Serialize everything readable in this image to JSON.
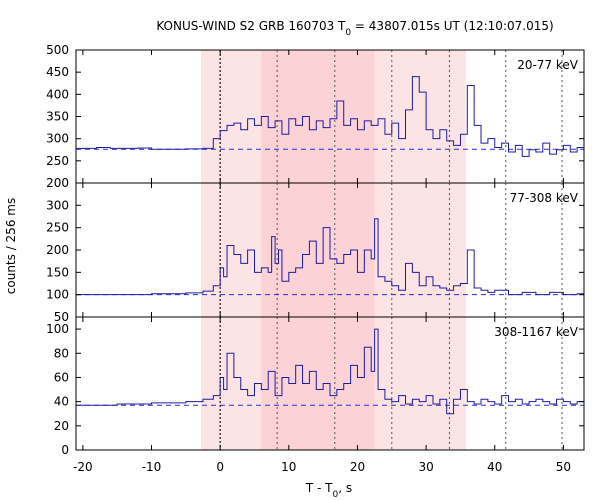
{
  "chart_data": {
    "type": "line",
    "title": "KONUS-WIND S2 GRB 160703 T",
    "title_sub": "0",
    "title_rest": " = 43807.015s UT (12:10:07.015)",
    "xlabel": "T - T",
    "xlabel_sub": "0",
    "xlabel_rest": ", s",
    "ylabel": "counts / 256 ms",
    "xlim": [
      -21,
      53
    ],
    "x_ticks": [
      -20,
      -10,
      0,
      10,
      20,
      30,
      40,
      50
    ],
    "x_tick_labels": [
      "-20",
      "-10",
      "0",
      "10",
      "20",
      "30",
      "40",
      "50"
    ],
    "trigger_line_x": 0,
    "dotted_lines_x": [
      8.3,
      16.7,
      25.0,
      33.4,
      41.6,
      49.8
    ],
    "shaded_regions": [
      {
        "x0": -2.8,
        "x1": 35.8,
        "color": "#fde4e4"
      },
      {
        "x0": 6.0,
        "x1": 22.5,
        "color": "#fbd2d6"
      }
    ],
    "line_color": "#1c1ca0",
    "dashed_color": "#2a2ad0",
    "panels": [
      {
        "label": "20-77 keV",
        "ylim": [
          200,
          500
        ],
        "y_ticks": [
          200,
          250,
          300,
          350,
          400,
          450,
          500
        ],
        "y_tick_labels": [
          "200",
          "250",
          "300",
          "350",
          "400",
          "450",
          "500"
        ],
        "background": 276,
        "series": [
          [
            -21,
            278
          ],
          [
            -18,
            280
          ],
          [
            -16,
            278
          ],
          [
            -12,
            279
          ],
          [
            -10,
            276
          ],
          [
            -5,
            277
          ],
          [
            -2.5,
            278
          ],
          [
            -1,
            300
          ],
          [
            0,
            318
          ],
          [
            1,
            330
          ],
          [
            2,
            335
          ],
          [
            3,
            320
          ],
          [
            4,
            345
          ],
          [
            5,
            330
          ],
          [
            6,
            350
          ],
          [
            7,
            325
          ],
          [
            8,
            340
          ],
          [
            9,
            310
          ],
          [
            10,
            345
          ],
          [
            11,
            330
          ],
          [
            12,
            350
          ],
          [
            13,
            320
          ],
          [
            14,
            340
          ],
          [
            15,
            325
          ],
          [
            16,
            345
          ],
          [
            17,
            385
          ],
          [
            18,
            330
          ],
          [
            19,
            345
          ],
          [
            20,
            320
          ],
          [
            21,
            340
          ],
          [
            22,
            330
          ],
          [
            23,
            345
          ],
          [
            24,
            310
          ],
          [
            25,
            335
          ],
          [
            26,
            300
          ],
          [
            27,
            365
          ],
          [
            28,
            440
          ],
          [
            29,
            405
          ],
          [
            30,
            320
          ],
          [
            31,
            300
          ],
          [
            32,
            320
          ],
          [
            33,
            295
          ],
          [
            34,
            285
          ],
          [
            35,
            310
          ],
          [
            36,
            420
          ],
          [
            37,
            330
          ],
          [
            38,
            290
          ],
          [
            39,
            300
          ],
          [
            40,
            280
          ],
          [
            41,
            290
          ],
          [
            42,
            270
          ],
          [
            43,
            285
          ],
          [
            44,
            260
          ],
          [
            45,
            275
          ],
          [
            46,
            270
          ],
          [
            47,
            290
          ],
          [
            48,
            265
          ],
          [
            49,
            275
          ],
          [
            50,
            285
          ],
          [
            51,
            270
          ],
          [
            52,
            280
          ],
          [
            53,
            275
          ]
        ]
      },
      {
        "label": "77-308 keV",
        "ylim": [
          50,
          350
        ],
        "y_ticks": [
          50,
          100,
          150,
          200,
          250,
          300
        ],
        "y_tick_labels": [
          "50",
          "100",
          "150",
          "200",
          "250",
          "300"
        ],
        "background": 100,
        "series": [
          [
            -21,
            100
          ],
          [
            -15,
            100
          ],
          [
            -12,
            100
          ],
          [
            -10,
            102
          ],
          [
            -5,
            104
          ],
          [
            -2.5,
            108
          ],
          [
            -1,
            120
          ],
          [
            0,
            160
          ],
          [
            0.5,
            140
          ],
          [
            1,
            210
          ],
          [
            2,
            190
          ],
          [
            3,
            170
          ],
          [
            4,
            200
          ],
          [
            5,
            150
          ],
          [
            6,
            160
          ],
          [
            7,
            150
          ],
          [
            7.5,
            230
          ],
          [
            8,
            170
          ],
          [
            8.5,
            200
          ],
          [
            9,
            130
          ],
          [
            10,
            150
          ],
          [
            11,
            160
          ],
          [
            12,
            190
          ],
          [
            13,
            220
          ],
          [
            14,
            170
          ],
          [
            15,
            250
          ],
          [
            16,
            180
          ],
          [
            17,
            170
          ],
          [
            18,
            190
          ],
          [
            19,
            200
          ],
          [
            20,
            150
          ],
          [
            21,
            200
          ],
          [
            22,
            180
          ],
          [
            22.5,
            270
          ],
          [
            23,
            140
          ],
          [
            24,
            130
          ],
          [
            25,
            120
          ],
          [
            26,
            110
          ],
          [
            27,
            170
          ],
          [
            28,
            150
          ],
          [
            29,
            120
          ],
          [
            30,
            140
          ],
          [
            31,
            120
          ],
          [
            32,
            115
          ],
          [
            33,
            110
          ],
          [
            34,
            120
          ],
          [
            35,
            125
          ],
          [
            36,
            200
          ],
          [
            37,
            115
          ],
          [
            38,
            110
          ],
          [
            39,
            105
          ],
          [
            40,
            110
          ],
          [
            42,
            100
          ],
          [
            44,
            105
          ],
          [
            46,
            100
          ],
          [
            48,
            105
          ],
          [
            50,
            100
          ],
          [
            52,
            102
          ],
          [
            53,
            100
          ]
        ]
      },
      {
        "label": "308-1167 keV",
        "ylim": [
          0,
          110
        ],
        "y_ticks": [
          0,
          20,
          40,
          60,
          80,
          100
        ],
        "y_tick_labels": [
          "0",
          "20",
          "40",
          "60",
          "80",
          "100"
        ],
        "background": 37,
        "series": [
          [
            -21,
            37
          ],
          [
            -15,
            38
          ],
          [
            -10,
            39
          ],
          [
            -5,
            40
          ],
          [
            -2.5,
            42
          ],
          [
            -1,
            45
          ],
          [
            0,
            60
          ],
          [
            0.5,
            50
          ],
          [
            1,
            80
          ],
          [
            2,
            60
          ],
          [
            3,
            50
          ],
          [
            4,
            45
          ],
          [
            5,
            55
          ],
          [
            6,
            50
          ],
          [
            7,
            65
          ],
          [
            8,
            45
          ],
          [
            9,
            60
          ],
          [
            10,
            55
          ],
          [
            11,
            70
          ],
          [
            12,
            55
          ],
          [
            13,
            65
          ],
          [
            14,
            50
          ],
          [
            15,
            55
          ],
          [
            16,
            45
          ],
          [
            17,
            50
          ],
          [
            18,
            55
          ],
          [
            19,
            70
          ],
          [
            20,
            60
          ],
          [
            21,
            85
          ],
          [
            22,
            65
          ],
          [
            22.5,
            100
          ],
          [
            23,
            50
          ],
          [
            24,
            42
          ],
          [
            25,
            40
          ],
          [
            26,
            45
          ],
          [
            27,
            38
          ],
          [
            28,
            42
          ],
          [
            29,
            40
          ],
          [
            30,
            45
          ],
          [
            31,
            38
          ],
          [
            32,
            42
          ],
          [
            33,
            30
          ],
          [
            34,
            42
          ],
          [
            35,
            50
          ],
          [
            36,
            40
          ],
          [
            37,
            38
          ],
          [
            38,
            42
          ],
          [
            39,
            40
          ],
          [
            40,
            38
          ],
          [
            41,
            45
          ],
          [
            42,
            40
          ],
          [
            43,
            42
          ],
          [
            44,
            38
          ],
          [
            45,
            40
          ],
          [
            46,
            42
          ],
          [
            47,
            40
          ],
          [
            48,
            38
          ],
          [
            49,
            42
          ],
          [
            50,
            40
          ],
          [
            51,
            38
          ],
          [
            52,
            40
          ],
          [
            53,
            39
          ]
        ]
      }
    ]
  }
}
